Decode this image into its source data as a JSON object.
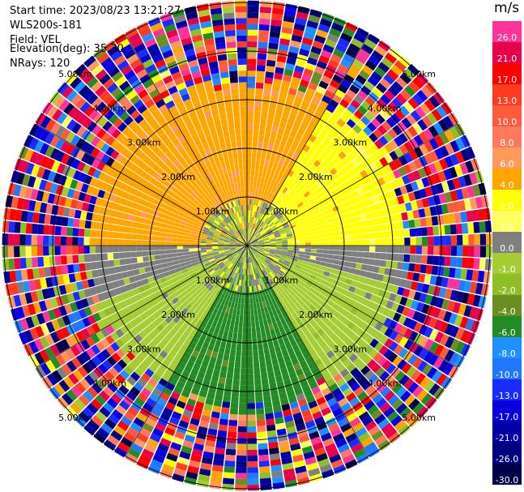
{
  "header": {
    "start_time": "Start time: 2023/08/23 13:21:27",
    "site": "WLS200s-181",
    "field": "Field: VEL",
    "elevation": "Elevation(deg): 35.30",
    "nrays": "NRays: 120"
  },
  "colorbar": {
    "unit": "m/s",
    "levels": [
      {
        "label": "26.0",
        "color": "#ff3399"
      },
      {
        "label": "21.0",
        "color": "#e8004a"
      },
      {
        "label": "17.0",
        "color": "#ff0000"
      },
      {
        "label": "13.0",
        "color": "#ff3b22"
      },
      {
        "label": "10.0",
        "color": "#ff5a3c"
      },
      {
        "label": "8.0",
        "color": "#ff7a5c"
      },
      {
        "label": "6.0",
        "color": "#ff9a5a"
      },
      {
        "label": "4.0",
        "color": "#ffa500"
      },
      {
        "label": "2.0",
        "color": "#ffff00"
      },
      {
        "label": "1.0",
        "color": "#fffe60"
      },
      {
        "label": "0.0",
        "color": "#7f7f7f"
      },
      {
        "label": "-1.0",
        "color": "#a6cc33"
      },
      {
        "label": "-2.0",
        "color": "#8fbf26"
      },
      {
        "label": "-4.0",
        "color": "#6b8e23"
      },
      {
        "label": "-6.0",
        "color": "#238b23"
      },
      {
        "label": "-8.0",
        "color": "#1e90ff"
      },
      {
        "label": "-10.0",
        "color": "#1f78ff"
      },
      {
        "label": "-13.0",
        "color": "#1a2bff"
      },
      {
        "label": "-17.0",
        "color": "#0a00dd"
      },
      {
        "label": "-21.0",
        "color": "#0000a6"
      },
      {
        "label": "-26.0",
        "color": "#000080"
      },
      {
        "label": "-30.0",
        "color": "#00004a"
      }
    ]
  },
  "chart_data": {
    "type": "heatmap",
    "projection": "polar-ppi",
    "nrays": 120,
    "max_range_km": 5.0,
    "range_rings": [
      {
        "label": "1.00km",
        "km": 1.0
      },
      {
        "label": "2.00km",
        "km": 2.0
      },
      {
        "label": "3.00km",
        "km": 3.0
      },
      {
        "label": "4.00km",
        "km": 4.0
      },
      {
        "label": "5.00km",
        "km": 5.0
      }
    ],
    "spokes_deg": [
      0,
      30,
      60,
      90,
      120,
      150
    ],
    "sectors": [
      {
        "from_az": 270,
        "to_az": 330,
        "velocity_ms": 4.0
      },
      {
        "from_az": 330,
        "to_az": 30,
        "velocity_ms": 4.0
      },
      {
        "from_az": 30,
        "to_az": 90,
        "velocity_ms": 2.0
      },
      {
        "from_az": 90,
        "to_az": 105,
        "velocity_ms": 0.0
      },
      {
        "from_az": 105,
        "to_az": 150,
        "velocity_ms": -1.0
      },
      {
        "from_az": 150,
        "to_az": 210,
        "velocity_ms": -6.0
      },
      {
        "from_az": 210,
        "to_az": 250,
        "velocity_ms": -1.0
      },
      {
        "from_az": 250,
        "to_az": 270,
        "velocity_ms": 0.0
      }
    ],
    "noise_starts_km": 3.3
  }
}
